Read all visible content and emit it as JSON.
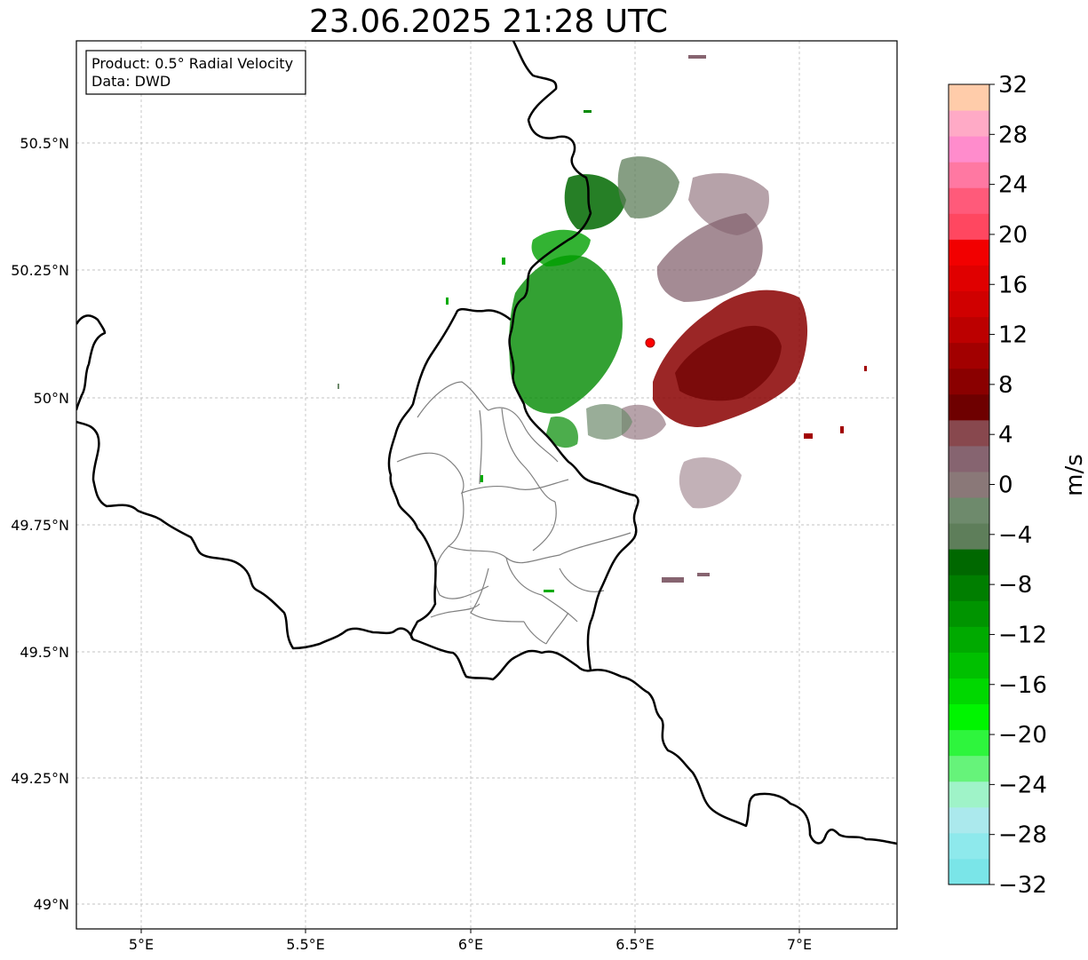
{
  "title": "23.06.2025 21:28 UTC",
  "info_box": {
    "product": "Product: 0.5° Radial Velocity",
    "data": "Data: DWD"
  },
  "map": {
    "lon_range": [
      4.8,
      7.3
    ],
    "lat_range": [
      48.95,
      50.7
    ],
    "lon_ticks": [
      "5°E",
      "5.5°E",
      "6°E",
      "6.5°E",
      "7°E"
    ],
    "lat_ticks": [
      "50.5°N",
      "50.25°N",
      "50°N",
      "49.75°N",
      "49.5°N",
      "49.25°N",
      "49°N"
    ],
    "grid": true,
    "radar_site": {
      "lon": 6.548,
      "lat": 50.11,
      "color": "#ff0000"
    }
  },
  "colorbar": {
    "unit": "m/s",
    "min": -32,
    "max": 32,
    "tick_labels": [
      "32",
      "28",
      "24",
      "20",
      "16",
      "12",
      "8",
      "4",
      "0",
      "−4",
      "−8",
      "−12",
      "−16",
      "−20",
      "−24",
      "−28",
      "−32"
    ],
    "colors_bottom_to_top": [
      "#7ae5e8",
      "#8ee9ec",
      "#abe9ed",
      "#9ff3c8",
      "#66f37a",
      "#2ef53d",
      "#00f500",
      "#00d800",
      "#00c000",
      "#00aa00",
      "#009400",
      "#007e00",
      "#006800",
      "#5e7e5a",
      "#6e8a6c",
      "#8a7878",
      "#866470",
      "#88484e",
      "#6e0000",
      "#8a0000",
      "#a20000",
      "#bc0000",
      "#d00000",
      "#e00000",
      "#f20000",
      "#ff4760",
      "#ff5a7a",
      "#ff78a2",
      "#ff8ccc",
      "#ffaac6",
      "#ffccaa"
    ]
  }
}
